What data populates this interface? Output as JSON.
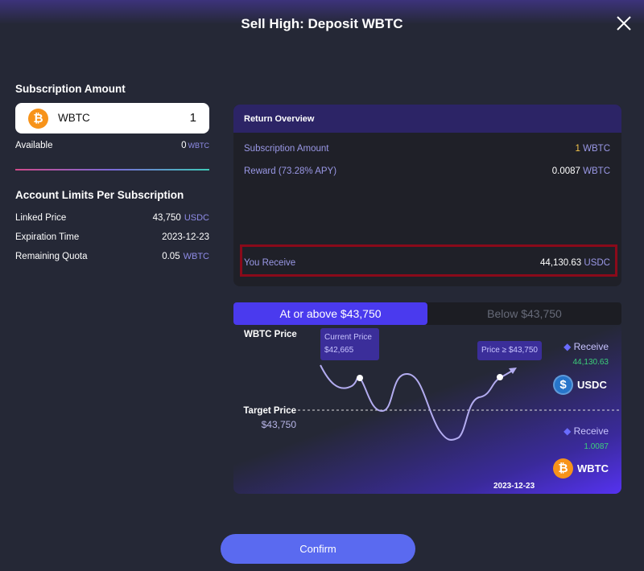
{
  "title": "Sell High: Deposit WBTC",
  "left": {
    "subscription_heading": "Subscription Amount",
    "asset": "WBTC",
    "amount": "1",
    "available_label": "Available",
    "available_value": "0",
    "available_unit": "WBTC",
    "limits_heading": "Account Limits Per Subscription",
    "limits": [
      {
        "label": "Linked Price",
        "value": "43,750",
        "unit": "USDC"
      },
      {
        "label": "Expiration Time",
        "value": "2023-12-23",
        "unit": ""
      },
      {
        "label": "Remaining Quota",
        "value": "0.05",
        "unit": "WBTC"
      }
    ]
  },
  "overview": {
    "title": "Return Overview",
    "rows": [
      {
        "label": "Subscription Amount",
        "value": "1",
        "unit": "WBTC"
      },
      {
        "label": "Reward (73.28% APY)",
        "value": "0.0087",
        "unit": "WBTC"
      }
    ],
    "receive_label": "You Receive",
    "receive_value": "44,130.63",
    "receive_unit": "USDC"
  },
  "tabs": [
    "At or above $43,750",
    "Below $43,750"
  ],
  "scenario": {
    "y_label": "WBTC Price",
    "current_price_label": "Current Price",
    "current_price": "$42,665",
    "condition": "Price ≥ $43,750",
    "target_label": "Target Price",
    "target_price": "$43,750",
    "receive_label": "Receive",
    "receive_usdc": "44,130.63",
    "usdc": "USDC",
    "receive_wbtc": "1.0087",
    "wbtc": "WBTC",
    "date": "2023-12-23"
  },
  "confirm": "Confirm",
  "colors": {
    "accent": "#4a3aee",
    "receive_value": "#3ccf7a",
    "highlight": "#8a0a1a"
  }
}
